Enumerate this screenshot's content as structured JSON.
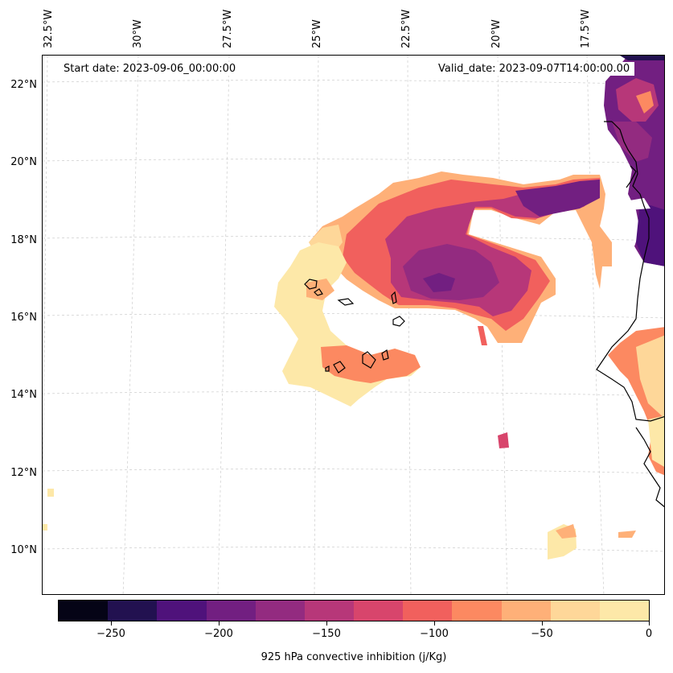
{
  "map": {
    "start_date": "Start date: 2023-09-06_00:00:00",
    "valid_date": "Valid_date: 2023-09-07T14:00:00.00",
    "longitude_labels": [
      "32.5°W",
      "30°W",
      "27.5°W",
      "25°W",
      "22.5°W",
      "20°W",
      "17.5°W"
    ],
    "latitude_labels": [
      "22°N",
      "20°N",
      "18°N",
      "16°N",
      "14°N",
      "12°N",
      "10°N"
    ],
    "field": "925 hPa convective inhibition",
    "regions": [
      {
        "name": "main-cin-band",
        "approx_value_range": [
          -150,
          0
        ]
      },
      {
        "name": "coastal-strong-inhibition",
        "approx_value_range": [
          -250,
          -100
        ]
      },
      {
        "name": "cabo-verde-south-patch",
        "approx_value_range": [
          -100,
          0
        ]
      },
      {
        "name": "senegal-coast-patch",
        "approx_value_range": [
          -100,
          0
        ]
      },
      {
        "name": "guinea-coast-patch",
        "approx_value_range": [
          -50,
          0
        ]
      }
    ]
  },
  "colorbar": {
    "title": "925 hPa convective inhibition (j/Kg)",
    "tick_labels": [
      "−250",
      "−200",
      "−150",
      "−100",
      "−50",
      "0"
    ],
    "colors": [
      "#050416",
      "#221150",
      "#4f127b",
      "#721f81",
      "#932b80",
      "#b73779",
      "#d8456c",
      "#f1605d",
      "#fc8961",
      "#feb078",
      "#fed799",
      "#fde8a8"
    ]
  }
}
